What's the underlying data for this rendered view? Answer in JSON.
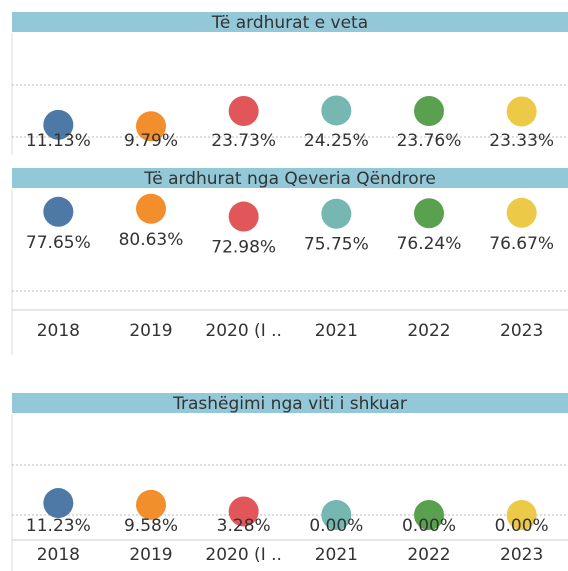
{
  "chart_data": [
    {
      "type": "dot",
      "title": "Të ardhurat e veta",
      "values": [
        11.13,
        9.79,
        23.73,
        24.25,
        23.76,
        23.33
      ],
      "value_labels": [
        "11.13%",
        "9.79%",
        "23.73%",
        "24.25%",
        "23.76%",
        "23.33%"
      ],
      "colors": [
        "#4e79a7",
        "#f28e2b",
        "#e15759",
        "#76b7b2",
        "#59a14f",
        "#edc948"
      ],
      "ylim": [
        0,
        95
      ]
    },
    {
      "type": "dot",
      "title": "Të ardhurat nga Qeveria Qëndrore",
      "categories": [
        "2018",
        "2019",
        "2020 (I ..",
        "2021",
        "2022",
        "2023"
      ],
      "values": [
        77.65,
        80.63,
        72.98,
        75.75,
        76.24,
        76.67
      ],
      "value_labels": [
        "77.65%",
        "80.63%",
        "72.98%",
        "75.75%",
        "76.24%",
        "76.67%"
      ],
      "colors": [
        "#4e79a7",
        "#f28e2b",
        "#e15759",
        "#76b7b2",
        "#59a14f",
        "#edc948"
      ],
      "ylim": [
        0,
        100
      ]
    },
    {
      "type": "dot",
      "title": "Trashëgimi nga viti i shkuar",
      "categories": [
        "2018",
        "2019",
        "2020 (I ..",
        "2021",
        "2022",
        "2023"
      ],
      "values": [
        11.23,
        9.58,
        3.28,
        0.0,
        0.0,
        0.0
      ],
      "value_labels": [
        "11.23%",
        "9.58%",
        "3.28%",
        "0.00%",
        "0.00%",
        "0.00%"
      ],
      "colors": [
        "#4e79a7",
        "#f28e2b",
        "#e15759",
        "#76b7b2",
        "#59a14f",
        "#edc948"
      ],
      "ylim": [
        0,
        95
      ]
    }
  ]
}
